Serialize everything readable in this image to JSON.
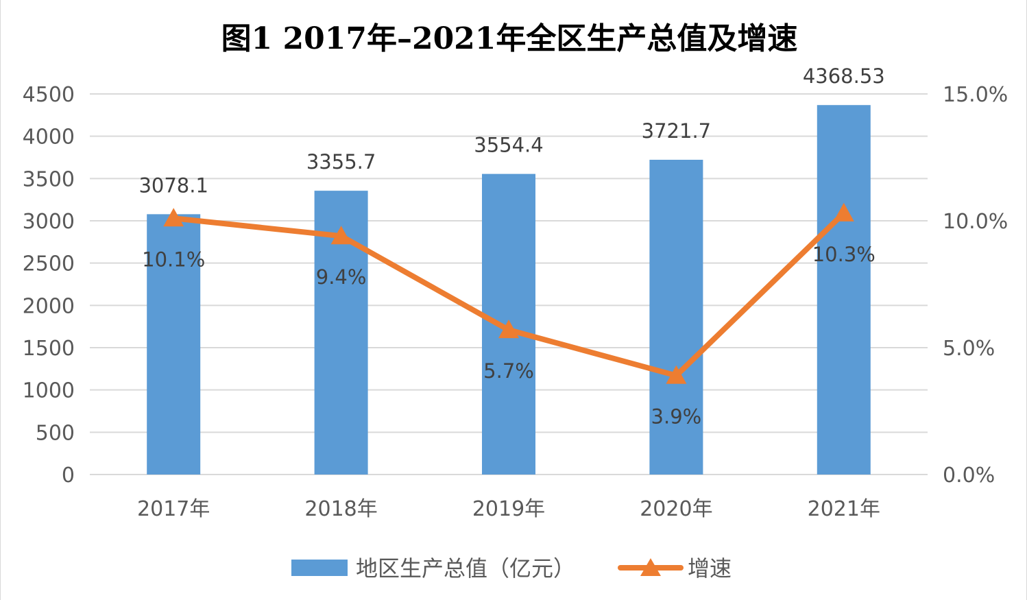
{
  "chart_data": {
    "type": "bar",
    "title": "图1  2017年–2021年全区生产总值及增速",
    "categories": [
      "2017年",
      "2018年",
      "2019年",
      "2020年",
      "2021年"
    ],
    "series": [
      {
        "name": "地区生产总值（亿元）",
        "type": "bar",
        "axis": "left",
        "color": "#5b9bd5",
        "values": [
          3078.1,
          3355.7,
          3554.4,
          3721.7,
          4368.53
        ],
        "labels": [
          "3078.1",
          "3355.7",
          "3554.4",
          "3721.7",
          "4368.53"
        ]
      },
      {
        "name": "增速",
        "type": "line",
        "axis": "right",
        "color": "#ed7d31",
        "marker": "triangle",
        "values": [
          10.1,
          9.4,
          5.7,
          3.9,
          10.3
        ],
        "labels": [
          "10.1%",
          "9.4%",
          "5.7%",
          "3.9%",
          "10.3%"
        ]
      }
    ],
    "y_left": {
      "min": 0,
      "max": 4500,
      "ticks": [
        0,
        500,
        1000,
        1500,
        2000,
        2500,
        3000,
        3500,
        4000,
        4500
      ],
      "tick_labels": [
        "0",
        "500",
        "1000",
        "1500",
        "2000",
        "2500",
        "3000",
        "3500",
        "4000",
        "4500"
      ]
    },
    "y_right": {
      "min": 0,
      "max": 15,
      "ticks": [
        0,
        5,
        10,
        15
      ],
      "tick_labels": [
        "0.0%",
        "5.0%",
        "10.0%",
        "15.0%"
      ]
    },
    "grid": true,
    "legend_position": "bottom",
    "gridline_color": "#d9d9d9"
  }
}
